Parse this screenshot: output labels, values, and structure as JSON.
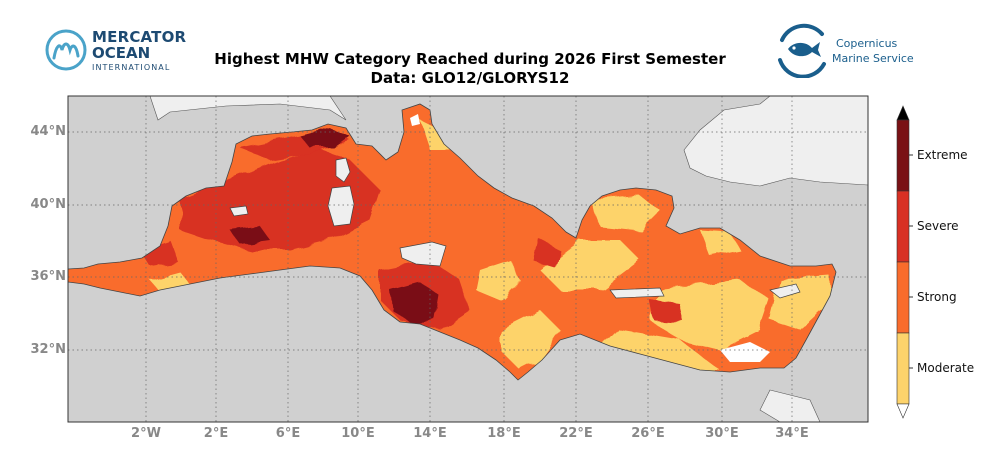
{
  "header": {
    "title_line1": "Highest MHW Category Reached during 2026 First Semester",
    "title_line2": "Data: GLO12/GLORYS12"
  },
  "logos": {
    "left": {
      "line1": "MERCATOR",
      "line2": "OCEAN",
      "line3": "INTERNATIONAL",
      "icon": "mercator-m-icon"
    },
    "right": {
      "line1": "Copernicus",
      "line2": "Marine Service",
      "icon": "fish-icon"
    }
  },
  "map": {
    "latitude_labels": [
      "44°N",
      "40°N",
      "36°N",
      "32°N"
    ],
    "longitude_labels": [
      "2°W",
      "2°E",
      "6°E",
      "10°E",
      "14°E",
      "18°E",
      "22°E",
      "26°E",
      "30°E",
      "34°E"
    ],
    "gridlines": "dotted",
    "land_color": "#efefef",
    "background_color": "#d0d0d0"
  },
  "legend": {
    "categories": [
      {
        "label": "Moderate",
        "color": "#fdd36b"
      },
      {
        "label": "Strong",
        "color": "#f96c2c"
      },
      {
        "label": "Severe",
        "color": "#d83024"
      },
      {
        "label": "Extreme",
        "color": "#7a1115"
      }
    ],
    "extension_top_color": "#000000",
    "extension_bottom_color": "#ffffff"
  }
}
